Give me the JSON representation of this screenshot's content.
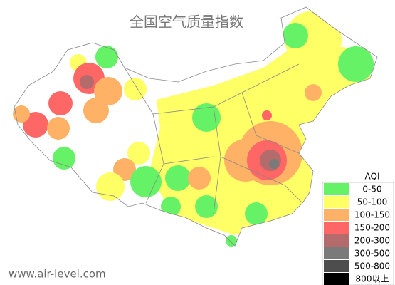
{
  "title": "全国空气质量指数",
  "legend": {
    "title": "AQI",
    "items": [
      {
        "label": "0-50",
        "color": "#66f266"
      },
      {
        "label": "50-100",
        "color": "#ffff66"
      },
      {
        "label": "100-150",
        "color": "#ffb266"
      },
      {
        "label": "150-200",
        "color": "#ff6666"
      },
      {
        "label": "200-300",
        "color": "#b36b6b"
      },
      {
        "label": "300-500",
        "color": "#7a7a7a"
      },
      {
        "label": "500-800",
        "color": "#4d4d4d"
      },
      {
        "label": "800以上",
        "color": "#000000"
      }
    ]
  },
  "watermark": "www.air-level.com"
}
